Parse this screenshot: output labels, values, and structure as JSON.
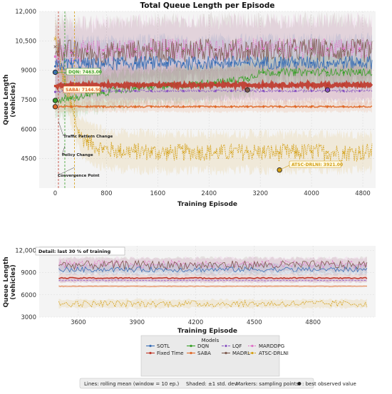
{
  "chart_data": [
    {
      "type": "line",
      "title": "Total Queue Length per Episode",
      "xlabel": "Training Episode",
      "ylabel": "Queue Length\n(vehicles)",
      "xlim": [
        -250,
        5000
      ],
      "ylim": [
        3000,
        12000
      ],
      "xticks": [
        "0",
        "800",
        "1600",
        "2400",
        "3200",
        "4000",
        "4800"
      ],
      "xtick_values": [
        0,
        800,
        1600,
        2400,
        3200,
        4000,
        4800
      ],
      "yticks": [
        "4500",
        "6000",
        "7500",
        "9000",
        "10,500",
        "12,000"
      ],
      "ytick_values": [
        4500,
        6000,
        7500,
        9000,
        10500,
        12000
      ],
      "grid": true,
      "series": [
        {
          "name": "SOTL",
          "color": "#3b6fb6",
          "marker": "circle",
          "values_x": [
            0,
            200,
            600,
            1000,
            1500,
            2000,
            2500,
            3000,
            3500,
            4000,
            4500,
            4950
          ],
          "values_y": [
            9200,
            9350,
            9300,
            9350,
            9380,
            9350,
            9400,
            9380,
            9400,
            9380,
            9400,
            9400
          ]
        },
        {
          "name": "Fixed Time",
          "color": "#c0392b",
          "marker": "square",
          "values_x": [
            0,
            200,
            600,
            1000,
            1500,
            2000,
            2500,
            3000,
            3500,
            4000,
            4500,
            4950
          ],
          "values_y": [
            8200,
            8250,
            8250,
            8250,
            8250,
            8250,
            8250,
            8250,
            8250,
            8250,
            8250,
            8250
          ]
        },
        {
          "name": "DQN",
          "color": "#3aa02a",
          "marker": "triangle",
          "values_x": [
            0,
            100,
            300,
            600,
            1000,
            1400,
            1800,
            2200,
            2600,
            3000,
            3200
          ],
          "values_y": [
            7463,
            7500,
            7600,
            7800,
            8000,
            8150,
            8200,
            8300,
            8400,
            8600,
            8900
          ]
        },
        {
          "name": "SABA",
          "color": "#e06a2a",
          "marker": "diamond",
          "values_x": [
            0,
            200,
            600,
            1000,
            1500,
            2000,
            2500,
            3000,
            3500,
            4000,
            4500,
            4950
          ],
          "values_y": [
            7145,
            7150,
            7150,
            7150,
            7150,
            7150,
            7150,
            7150,
            7150,
            7150,
            7150,
            7150
          ]
        },
        {
          "name": "LQF",
          "color": "#8a55c2",
          "marker": "circle",
          "values_x": [
            0,
            200,
            600,
            1000,
            1500,
            2000,
            2500,
            3000,
            3500,
            4000,
            4500,
            4950
          ],
          "values_y": [
            7900,
            7950,
            7950,
            7950,
            7950,
            7950,
            7950,
            7950,
            7950,
            7950,
            7950,
            7950
          ]
        },
        {
          "name": "MADRL",
          "color": "#7d5a4f",
          "marker": "star",
          "values_x": [
            0,
            200,
            600,
            1000,
            1500,
            2000,
            2500,
            3000,
            3500,
            4000,
            4500,
            4950
          ],
          "values_y": [
            10200,
            10000,
            9800,
            9900,
            10000,
            10000,
            10050,
            10000,
            10000,
            10050,
            10000,
            10000
          ]
        },
        {
          "name": "MARDDPG",
          "color": "#e075c8",
          "marker": "square",
          "values_x": [
            0,
            200,
            600,
            1000,
            1500,
            2000,
            2500,
            3000,
            3500,
            4000,
            4500,
            4950
          ],
          "values_y": [
            9700,
            9900,
            10000,
            10050,
            10100,
            10100,
            10050,
            10100,
            10100,
            10100,
            10100,
            10100
          ]
        },
        {
          "name": "ATSC-DRLNI",
          "color": "#d4a017",
          "marker": "cross",
          "values_x": [
            0,
            100,
            200,
            300,
            400,
            600,
            800,
            1000,
            1400,
            1800,
            2200,
            2600,
            3000,
            3500,
            4000,
            4500,
            4950
          ],
          "values_y": [
            10600,
            9000,
            7800,
            6500,
            5600,
            5200,
            4950,
            4900,
            4850,
            4800,
            4850,
            4800,
            4850,
            4800,
            4850,
            4800,
            4850
          ]
        }
      ],
      "annotations": [
        {
          "text": "DQN: 7463.00",
          "color": "#3aa02a"
        },
        {
          "text": "SABA: 7144.50",
          "color": "#e06a2a"
        },
        {
          "text": "ATSC-DRLNI: 3921.00",
          "color": "#d4a017"
        },
        {
          "text": "Traffic Pattern Change",
          "color": "#222"
        },
        {
          "text": "Policy Change",
          "color": "#222"
        },
        {
          "text": "Convergence Point",
          "color": "#222"
        }
      ],
      "best_points": [
        {
          "series": "ATSC-DRLNI",
          "x": 3500,
          "y": 3921
        },
        {
          "series": "DQN",
          "x": 0,
          "y": 7463
        },
        {
          "series": "SABA",
          "x": 0,
          "y": 7145
        },
        {
          "series": "MADRL",
          "x": 3000,
          "y": 8000
        },
        {
          "series": "LQF",
          "x": 4250,
          "y": 8000
        },
        {
          "series": "SOTL",
          "x": 0,
          "y": 8900
        }
      ]
    },
    {
      "type": "line",
      "title": "Detail: last 30 % of training",
      "xlabel": "Training Episode",
      "ylabel": "Queue Length\n(vehicles)",
      "xlim": [
        3400,
        5120
      ],
      "ylim": [
        3000,
        12600
      ],
      "xticks": [
        "3600",
        "3900",
        "4200",
        "4500",
        "4800"
      ],
      "xtick_values": [
        3600,
        3900,
        4200,
        4500,
        4800
      ],
      "yticks": [
        "3000",
        "6000",
        "9000",
        "12,000"
      ],
      "ytick_values": [
        3000,
        6000,
        9000,
        12000
      ],
      "grid": true,
      "series": [
        {
          "name": "SOTL",
          "values_x": [
            3500,
            5080
          ],
          "values_y": [
            9400,
            9400
          ]
        },
        {
          "name": "Fixed Time",
          "values_x": [
            3500,
            5080
          ],
          "values_y": [
            8250,
            8250
          ]
        },
        {
          "name": "SABA",
          "values_x": [
            3500,
            5080
          ],
          "values_y": [
            7150,
            7150
          ]
        },
        {
          "name": "LQF",
          "values_x": [
            3500,
            5080
          ],
          "values_y": [
            7950,
            7950
          ]
        },
        {
          "name": "MADRL",
          "values_x": [
            3500,
            5080
          ],
          "values_y": [
            10000,
            10000
          ]
        },
        {
          "name": "MARDDPG",
          "values_x": [
            3500,
            5080
          ],
          "values_y": [
            10100,
            10100
          ]
        },
        {
          "name": "ATSC-DRLNI",
          "values_x": [
            3500,
            5080
          ],
          "values_y": [
            4800,
            4800
          ]
        }
      ]
    }
  ],
  "legend": {
    "title": "Models",
    "entries": [
      "SOTL",
      "Fixed Time",
      "DQN",
      "SABA",
      "LQF",
      "MADRL",
      "MARDDPG",
      "ATSC-DRLNI"
    ]
  },
  "footnote": {
    "lines": "Lines: rolling mean (window = 10 ep.)",
    "shaded": "Shaded: ±1 std. dev.",
    "markers": "Markers: sampling points",
    "best": ": best observed value"
  }
}
